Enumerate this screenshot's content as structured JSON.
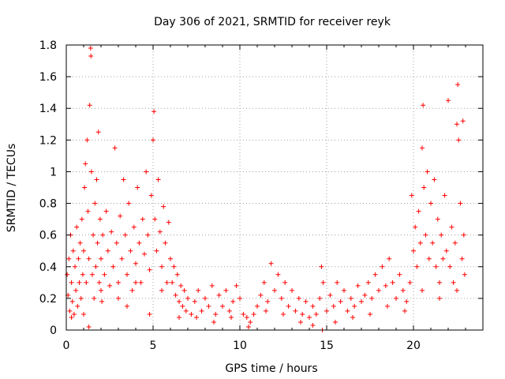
{
  "chart_data": {
    "type": "scatter",
    "title": "Day 306 of 2021, SRMTID for receiver reyk",
    "xlabel": "GPS time / hours",
    "ylabel": "SRMTID / TECUs",
    "xlim": [
      0,
      24
    ],
    "ylim": [
      0,
      1.8
    ],
    "xticks": [
      0,
      5,
      10,
      15,
      20
    ],
    "xtick_labels": [
      "0",
      "5",
      "10",
      "15",
      "20"
    ],
    "yticks": [
      0,
      0.2,
      0.4,
      0.6,
      0.8,
      1.0,
      1.2,
      1.4,
      1.6,
      1.8
    ],
    "ytick_labels": [
      "0",
      "0.2",
      "0.4",
      "0.6",
      "0.8",
      "1",
      "1.2",
      "1.4",
      "1.6",
      "1.8"
    ],
    "grid": true,
    "marker": "+",
    "color": "#ff0000",
    "series": [
      {
        "name": "SRMTID",
        "points": [
          [
            0.05,
            0.35
          ],
          [
            0.1,
            0.22
          ],
          [
            0.15,
            0.45
          ],
          [
            0.2,
            0.12
          ],
          [
            0.25,
            0.6
          ],
          [
            0.3,
            0.3
          ],
          [
            0.35,
            0.18
          ],
          [
            0.4,
            0.5
          ],
          [
            0.45,
            0.1
          ],
          [
            0.5,
            0.4
          ],
          [
            0.55,
            0.25
          ],
          [
            0.6,
            0.65
          ],
          [
            0.65,
            0.15
          ],
          [
            0.7,
            0.45
          ],
          [
            0.75,
            0.3
          ],
          [
            0.8,
            0.55
          ],
          [
            0.85,
            0.2
          ],
          [
            0.9,
            0.7
          ],
          [
            0.95,
            0.35
          ],
          [
            1.0,
            0.5
          ],
          [
            1.05,
            0.9
          ],
          [
            1.1,
            1.05
          ],
          [
            1.15,
            0.3
          ],
          [
            1.2,
            1.2
          ],
          [
            1.25,
            0.75
          ],
          [
            1.3,
            0.45
          ],
          [
            1.35,
            1.42
          ],
          [
            1.4,
            1.78
          ],
          [
            1.42,
            1.73
          ],
          [
            1.45,
            1.0
          ],
          [
            1.5,
            0.35
          ],
          [
            1.55,
            0.6
          ],
          [
            1.6,
            0.2
          ],
          [
            1.65,
            0.8
          ],
          [
            1.7,
            0.4
          ],
          [
            1.75,
            0.95
          ],
          [
            1.8,
            0.55
          ],
          [
            1.85,
            1.25
          ],
          [
            1.9,
            0.3
          ],
          [
            1.95,
            0.7
          ],
          [
            2.0,
            0.45
          ],
          [
            2.05,
            0.18
          ],
          [
            2.1,
            0.6
          ],
          [
            2.2,
            0.35
          ],
          [
            2.3,
            0.75
          ],
          [
            2.4,
            0.5
          ],
          [
            2.5,
            0.28
          ],
          [
            2.6,
            0.62
          ],
          [
            2.7,
            0.4
          ],
          [
            2.8,
            1.15
          ],
          [
            2.9,
            0.55
          ],
          [
            3.0,
            0.3
          ],
          [
            3.1,
            0.72
          ],
          [
            3.2,
            0.45
          ],
          [
            3.3,
            0.95
          ],
          [
            3.4,
            0.6
          ],
          [
            3.5,
            0.35
          ],
          [
            3.6,
            0.8
          ],
          [
            3.7,
            0.5
          ],
          [
            3.8,
            0.25
          ],
          [
            3.9,
            0.65
          ],
          [
            4.0,
            0.42
          ],
          [
            4.1,
            0.9
          ],
          [
            4.2,
            0.55
          ],
          [
            4.3,
            0.3
          ],
          [
            4.4,
            0.7
          ],
          [
            4.5,
            0.48
          ],
          [
            4.6,
            1.0
          ],
          [
            4.7,
            0.6
          ],
          [
            4.8,
            0.38
          ],
          [
            4.9,
            0.85
          ],
          [
            5.0,
            1.2
          ],
          [
            5.05,
            1.38
          ],
          [
            5.1,
            0.7
          ],
          [
            5.2,
            0.5
          ],
          [
            5.3,
            0.95
          ],
          [
            5.4,
            0.62
          ],
          [
            5.5,
            0.4
          ],
          [
            5.6,
            0.78
          ],
          [
            5.7,
            0.55
          ],
          [
            5.8,
            0.3
          ],
          [
            5.9,
            0.68
          ],
          [
            6.0,
            0.45
          ],
          [
            6.1,
            0.3
          ],
          [
            6.2,
            0.4
          ],
          [
            6.3,
            0.22
          ],
          [
            6.4,
            0.35
          ],
          [
            6.5,
            0.18
          ],
          [
            6.6,
            0.28
          ],
          [
            6.7,
            0.15
          ],
          [
            6.8,
            0.25
          ],
          [
            6.9,
            0.12
          ],
          [
            7.0,
            0.2
          ],
          [
            7.2,
            0.1
          ],
          [
            7.4,
            0.18
          ],
          [
            7.6,
            0.25
          ],
          [
            7.8,
            0.12
          ],
          [
            8.0,
            0.2
          ],
          [
            8.2,
            0.15
          ],
          [
            8.4,
            0.28
          ],
          [
            8.6,
            0.1
          ],
          [
            8.8,
            0.22
          ],
          [
            9.0,
            0.15
          ],
          [
            9.2,
            0.25
          ],
          [
            9.4,
            0.12
          ],
          [
            9.6,
            0.18
          ],
          [
            9.8,
            0.28
          ],
          [
            10.0,
            0.2
          ],
          [
            10.2,
            0.1
          ],
          [
            10.4,
            0.08
          ],
          [
            10.6,
            0.05
          ],
          [
            10.8,
            0.1
          ],
          [
            11.0,
            0.15
          ],
          [
            11.2,
            0.22
          ],
          [
            11.4,
            0.3
          ],
          [
            11.6,
            0.18
          ],
          [
            11.8,
            0.42
          ],
          [
            12.0,
            0.25
          ],
          [
            12.2,
            0.35
          ],
          [
            12.4,
            0.2
          ],
          [
            12.6,
            0.3
          ],
          [
            12.8,
            0.15
          ],
          [
            13.0,
            0.25
          ],
          [
            13.2,
            0.12
          ],
          [
            13.4,
            0.2
          ],
          [
            13.6,
            0.1
          ],
          [
            13.8,
            0.18
          ],
          [
            14.0,
            0.08
          ],
          [
            14.2,
            0.15
          ],
          [
            14.4,
            0.1
          ],
          [
            14.6,
            0.2
          ],
          [
            14.7,
            0.4
          ],
          [
            14.75,
            0.0
          ],
          [
            14.8,
            0.3
          ],
          [
            15.0,
            0.12
          ],
          [
            15.2,
            0.22
          ],
          [
            15.4,
            0.15
          ],
          [
            15.6,
            0.3
          ],
          [
            15.8,
            0.18
          ],
          [
            16.0,
            0.25
          ],
          [
            16.2,
            0.12
          ],
          [
            16.4,
            0.2
          ],
          [
            16.6,
            0.15
          ],
          [
            16.8,
            0.28
          ],
          [
            17.0,
            0.18
          ],
          [
            17.2,
            0.22
          ],
          [
            17.4,
            0.3
          ],
          [
            17.6,
            0.2
          ],
          [
            17.8,
            0.35
          ],
          [
            18.0,
            0.25
          ],
          [
            18.2,
            0.4
          ],
          [
            18.4,
            0.28
          ],
          [
            18.6,
            0.45
          ],
          [
            18.8,
            0.3
          ],
          [
            19.0,
            0.2
          ],
          [
            19.2,
            0.35
          ],
          [
            19.4,
            0.25
          ],
          [
            19.6,
            0.18
          ],
          [
            19.8,
            0.3
          ],
          [
            19.9,
            0.85
          ],
          [
            20.0,
            0.5
          ],
          [
            20.1,
            0.65
          ],
          [
            20.2,
            0.4
          ],
          [
            20.3,
            0.75
          ],
          [
            20.4,
            0.55
          ],
          [
            20.5,
            1.15
          ],
          [
            20.55,
            1.42
          ],
          [
            20.6,
            0.9
          ],
          [
            20.7,
            0.6
          ],
          [
            20.8,
            1.0
          ],
          [
            20.9,
            0.45
          ],
          [
            21.0,
            0.8
          ],
          [
            21.1,
            0.55
          ],
          [
            21.2,
            0.95
          ],
          [
            21.3,
            0.4
          ],
          [
            21.4,
            0.7
          ],
          [
            21.5,
            0.3
          ],
          [
            21.6,
            0.6
          ],
          [
            21.7,
            0.45
          ],
          [
            21.8,
            0.85
          ],
          [
            21.9,
            0.5
          ],
          [
            22.0,
            1.45
          ],
          [
            22.1,
            0.4
          ],
          [
            22.2,
            0.65
          ],
          [
            22.3,
            0.3
          ],
          [
            22.4,
            0.55
          ],
          [
            22.5,
            1.3
          ],
          [
            22.55,
            1.55
          ],
          [
            22.6,
            1.2
          ],
          [
            22.7,
            0.8
          ],
          [
            22.8,
            0.45
          ],
          [
            22.85,
            1.32
          ],
          [
            22.9,
            0.6
          ],
          [
            22.95,
            0.35
          ],
          [
            0.3,
            0.08
          ],
          [
            1.0,
            0.1
          ],
          [
            2.0,
            0.25
          ],
          [
            3.0,
            0.2
          ],
          [
            4.0,
            0.3
          ],
          [
            5.5,
            0.25
          ],
          [
            6.5,
            0.08
          ],
          [
            7.5,
            0.08
          ],
          [
            8.5,
            0.05
          ],
          [
            9.5,
            0.08
          ],
          [
            10.5,
            0.02
          ],
          [
            11.5,
            0.12
          ],
          [
            12.5,
            0.1
          ],
          [
            13.5,
            0.05
          ],
          [
            14.2,
            0.03
          ],
          [
            15.5,
            0.05
          ],
          [
            16.5,
            0.08
          ],
          [
            17.5,
            0.1
          ],
          [
            18.5,
            0.15
          ],
          [
            19.5,
            0.12
          ],
          [
            20.5,
            0.25
          ],
          [
            21.5,
            0.2
          ],
          [
            22.5,
            0.25
          ],
          [
            1.3,
            0.02
          ],
          [
            3.5,
            0.15
          ],
          [
            4.8,
            0.1
          ]
        ]
      }
    ]
  }
}
